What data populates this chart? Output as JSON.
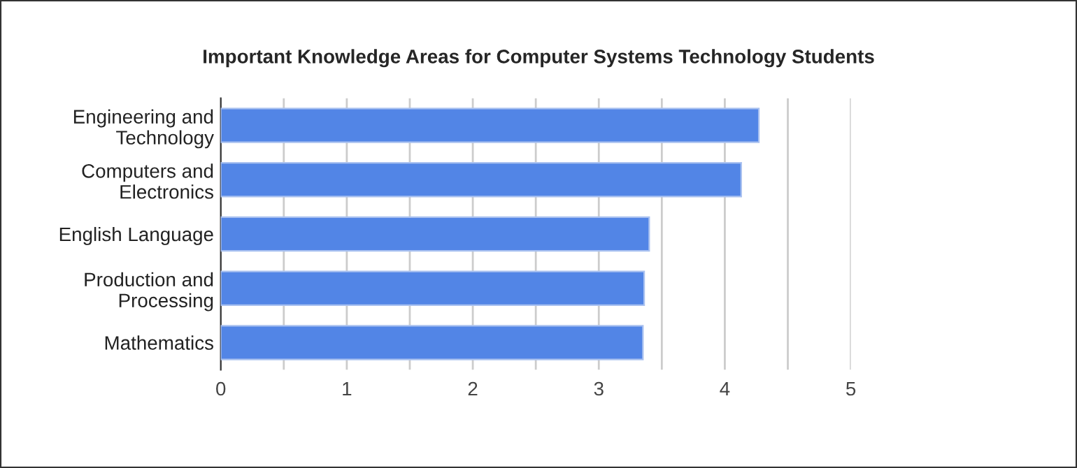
{
  "chart_data": {
    "type": "bar",
    "orientation": "horizontal",
    "title": "Important Knowledge Areas for Computer Systems Technology Students",
    "categories": [
      "Engineering and\nTechnology",
      "Computers and\nElectronics",
      "English Language",
      "Production and\nProcessing",
      "Mathematics"
    ],
    "values": [
      4.27,
      4.13,
      3.4,
      3.36,
      3.35
    ],
    "color": "#5285e6",
    "xlim": [
      0,
      5
    ],
    "xticks": [
      0,
      {
        "value": 0.5,
        "label": null
      },
      1,
      {
        "value": 1.5,
        "label": null
      },
      2,
      {
        "value": 2.5,
        "label": null
      },
      3,
      {
        "value": 3.5,
        "label": null
      },
      4,
      {
        "value": 4.5,
        "label": null
      },
      5
    ],
    "grid": "x"
  }
}
